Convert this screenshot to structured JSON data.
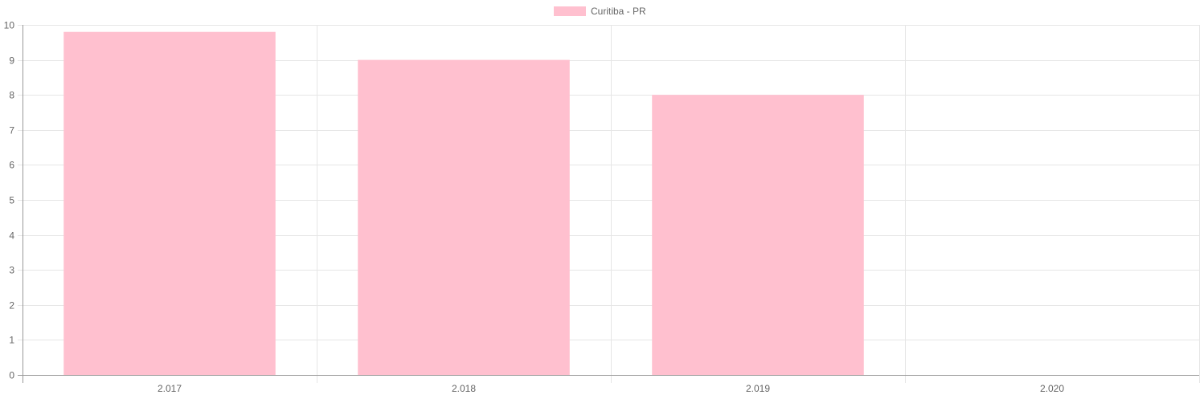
{
  "chart_data": {
    "type": "bar",
    "categories": [
      "2.017",
      "2.018",
      "2.019",
      "2.020"
    ],
    "series": [
      {
        "name": "Curitiba - PR",
        "values": [
          9.8,
          9,
          8,
          null
        ],
        "color": "#ffc0cf"
      }
    ],
    "y_ticks": [
      "0",
      "1",
      "2",
      "3",
      "4",
      "5",
      "6",
      "7",
      "8",
      "9",
      "10"
    ],
    "ylim": [
      0,
      10
    ],
    "grid": true,
    "legend_position": "top-center",
    "title": "",
    "xlabel": "",
    "ylabel": ""
  }
}
